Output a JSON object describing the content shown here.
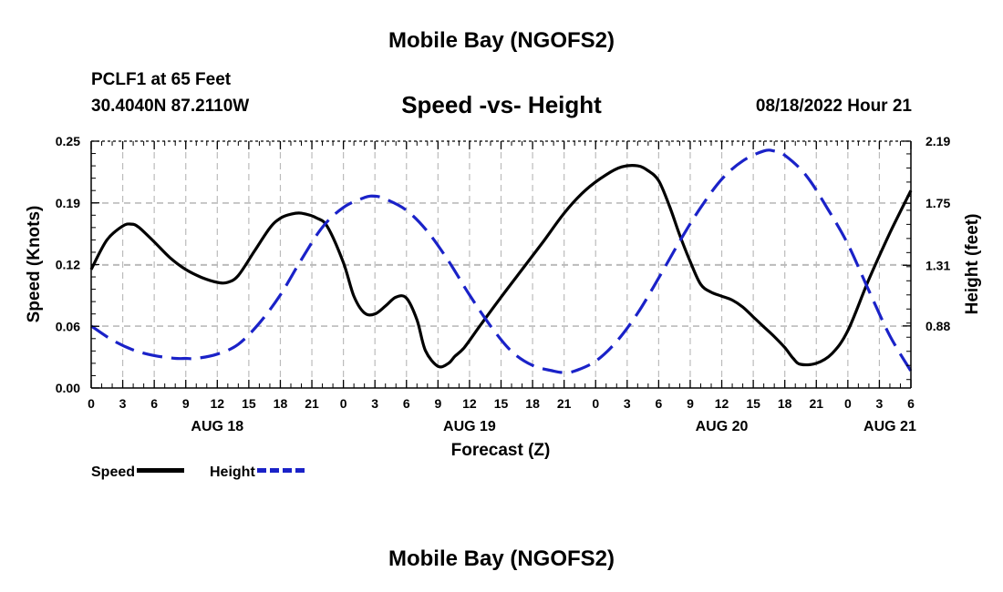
{
  "header": {
    "title": "Mobile Bay (NGOFS2)",
    "station": "PCLF1 at 65 Feet",
    "coords": "30.4040N  87.2110W",
    "date": "08/18/2022 Hour 21"
  },
  "footer": {
    "title": "Mobile Bay (NGOFS2)"
  },
  "legend": {
    "speed_label": "Speed",
    "height_label": "Height"
  },
  "colors": {
    "speed": "#000000",
    "height": "#1a22c8",
    "grid": "#bbbbbb"
  },
  "chart_data": {
    "type": "line",
    "title": "Speed -vs- Height",
    "xlabel": "Forecast (Z)",
    "ylabel": "Speed (Knots)",
    "y2label": "Height (feet)",
    "xlim": [
      0,
      78
    ],
    "ylim": [
      0,
      0.25
    ],
    "y2lim": [
      0.44,
      2.19
    ],
    "x_ticks": [
      0,
      3,
      6,
      9,
      12,
      15,
      18,
      21,
      24,
      27,
      30,
      33,
      36,
      39,
      42,
      45,
      48,
      51,
      54,
      57,
      60,
      63,
      66,
      69,
      72,
      75,
      78
    ],
    "x_tick_labels": [
      "0",
      "3",
      "6",
      "9",
      "12",
      "15",
      "18",
      "21",
      "0",
      "3",
      "6",
      "9",
      "12",
      "15",
      "18",
      "21",
      "0",
      "3",
      "6",
      "9",
      "12",
      "15",
      "18",
      "21",
      "0",
      "3",
      "6"
    ],
    "y_ticks": [
      0,
      0.0625,
      0.125,
      0.1875,
      0.25
    ],
    "y_tick_labels": [
      "0.00",
      "0.06",
      "0.12",
      "0.19",
      "0.25"
    ],
    "y2_ticks": [
      0.88,
      1.31,
      1.75,
      2.19
    ],
    "y2_tick_labels": [
      "0.88",
      "1.31",
      "1.75",
      "2.19"
    ],
    "day_labels": [
      {
        "x": 12,
        "text": "AUG 18"
      },
      {
        "x": 36,
        "text": "AUG 19"
      },
      {
        "x": 60,
        "text": "AUG 20"
      },
      {
        "x": 76,
        "text": "AUG 21"
      }
    ],
    "series": [
      {
        "name": "Speed",
        "axis": "left",
        "style": "solid",
        "x": [
          0,
          1.5,
          3,
          3.8,
          4.5,
          6,
          7.5,
          9,
          10.5,
          12,
          13,
          14,
          15.5,
          17,
          18,
          19,
          20,
          21.5,
          22.5,
          24,
          25,
          26,
          27,
          28,
          29,
          30,
          31,
          31.8,
          33,
          34,
          34.6,
          35.5,
          37,
          39,
          41,
          43,
          45,
          47,
          49,
          50.5,
          52,
          53,
          54,
          55,
          56,
          57,
          58,
          59,
          60,
          61,
          62,
          63,
          64,
          65,
          66,
          66.8,
          67.5,
          69,
          70.5,
          72,
          74,
          76,
          78
        ],
        "y": [
          0.12,
          0.15,
          0.164,
          0.166,
          0.163,
          0.148,
          0.132,
          0.12,
          0.112,
          0.107,
          0.107,
          0.114,
          0.138,
          0.162,
          0.172,
          0.176,
          0.177,
          0.172,
          0.163,
          0.127,
          0.093,
          0.076,
          0.075,
          0.083,
          0.092,
          0.091,
          0.069,
          0.038,
          0.022,
          0.025,
          0.032,
          0.041,
          0.063,
          0.092,
          0.12,
          0.148,
          0.177,
          0.2,
          0.216,
          0.224,
          0.225,
          0.22,
          0.21,
          0.185,
          0.155,
          0.128,
          0.105,
          0.097,
          0.093,
          0.089,
          0.082,
          0.072,
          0.062,
          0.052,
          0.041,
          0.03,
          0.024,
          0.025,
          0.035,
          0.058,
          0.11,
          0.157,
          0.2
        ]
      },
      {
        "name": "Height",
        "axis": "right",
        "style": "dashed",
        "x": [
          0,
          2,
          4,
          6,
          8,
          9,
          10,
          12,
          14,
          16,
          18,
          20,
          22,
          24,
          26,
          27,
          28,
          30,
          32,
          34,
          36,
          38,
          40,
          42,
          44,
          45,
          46,
          48,
          50,
          52,
          54,
          56,
          58,
          60,
          62,
          64,
          65,
          66,
          68,
          70,
          72,
          74,
          76,
          78
        ],
        "y": [
          0.88,
          0.78,
          0.71,
          0.67,
          0.65,
          0.65,
          0.65,
          0.68,
          0.75,
          0.9,
          1.1,
          1.35,
          1.58,
          1.72,
          1.79,
          1.8,
          1.78,
          1.7,
          1.55,
          1.34,
          1.1,
          0.88,
          0.7,
          0.6,
          0.56,
          0.55,
          0.56,
          0.63,
          0.77,
          0.97,
          1.22,
          1.48,
          1.72,
          1.92,
          2.05,
          2.12,
          2.12,
          2.09,
          1.95,
          1.72,
          1.46,
          1.13,
          0.81,
          0.56
        ]
      }
    ],
    "grid": true,
    "legend_position": "bottom-left"
  }
}
